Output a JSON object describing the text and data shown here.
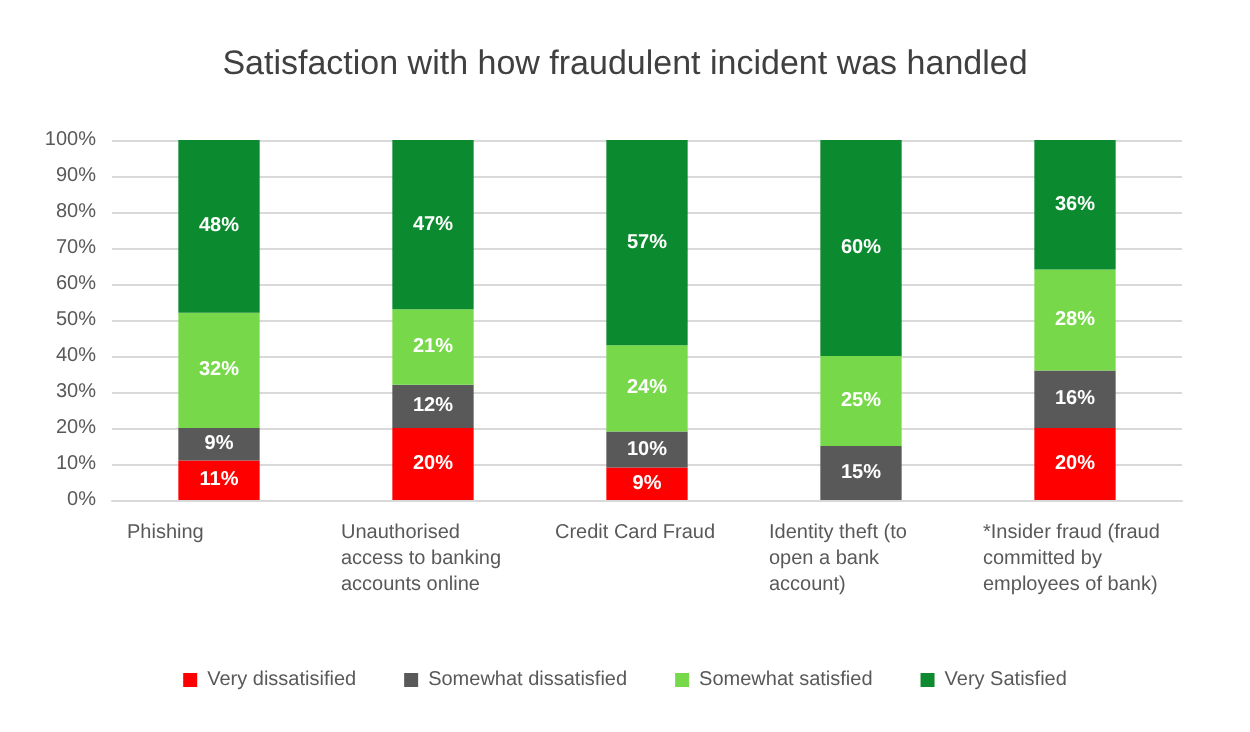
{
  "chart_data": {
    "type": "bar",
    "title": "Satisfaction with how fraudulent incident was handled",
    "categories": [
      "Phishing",
      "Unauthorised access to banking accounts online",
      "Credit Card Fraud",
      "Identity theft (to open a bank account)",
      "*Insider fraud (fraud committed by employees of bank)"
    ],
    "stacked": true,
    "ylim": [
      0,
      100
    ],
    "yticks": [
      {
        "value": 0,
        "label": "0%"
      },
      {
        "value": 10,
        "label": "10%"
      },
      {
        "value": 20,
        "label": "20%"
      },
      {
        "value": 30,
        "label": "30%"
      },
      {
        "value": 40,
        "label": "40%"
      },
      {
        "value": 50,
        "label": "50%"
      },
      {
        "value": 60,
        "label": "60%"
      },
      {
        "value": 70,
        "label": "70%"
      },
      {
        "value": 80,
        "label": "80%"
      },
      {
        "value": 90,
        "label": "90%"
      },
      {
        "value": 100,
        "label": "100%"
      }
    ],
    "grid": "y",
    "legend": "bottom",
    "series": [
      {
        "name": "Very dissatisified",
        "color": "#ff0000",
        "values": [
          11,
          20,
          9,
          null,
          20
        ],
        "value_labels": [
          "11%",
          "20%",
          "9%",
          null,
          "20%"
        ]
      },
      {
        "name": "Somewhat dissatisfied",
        "color": "#595959",
        "values": [
          9,
          12,
          10,
          15,
          16
        ],
        "value_labels": [
          "9%",
          "12%",
          "10%",
          "15%",
          "16%"
        ]
      },
      {
        "name": "Somewhat satisfied",
        "color": "#77d94a",
        "values": [
          32,
          21,
          24,
          25,
          28
        ],
        "value_labels": [
          "32%",
          "21%",
          "24%",
          "25%",
          "28%"
        ]
      },
      {
        "name": "Very Satisfied",
        "color": "#0b8a2f",
        "values": [
          48,
          47,
          57,
          60,
          36
        ],
        "value_labels": [
          "48%",
          "47%",
          "57%",
          "60%",
          "36%"
        ]
      }
    ]
  }
}
